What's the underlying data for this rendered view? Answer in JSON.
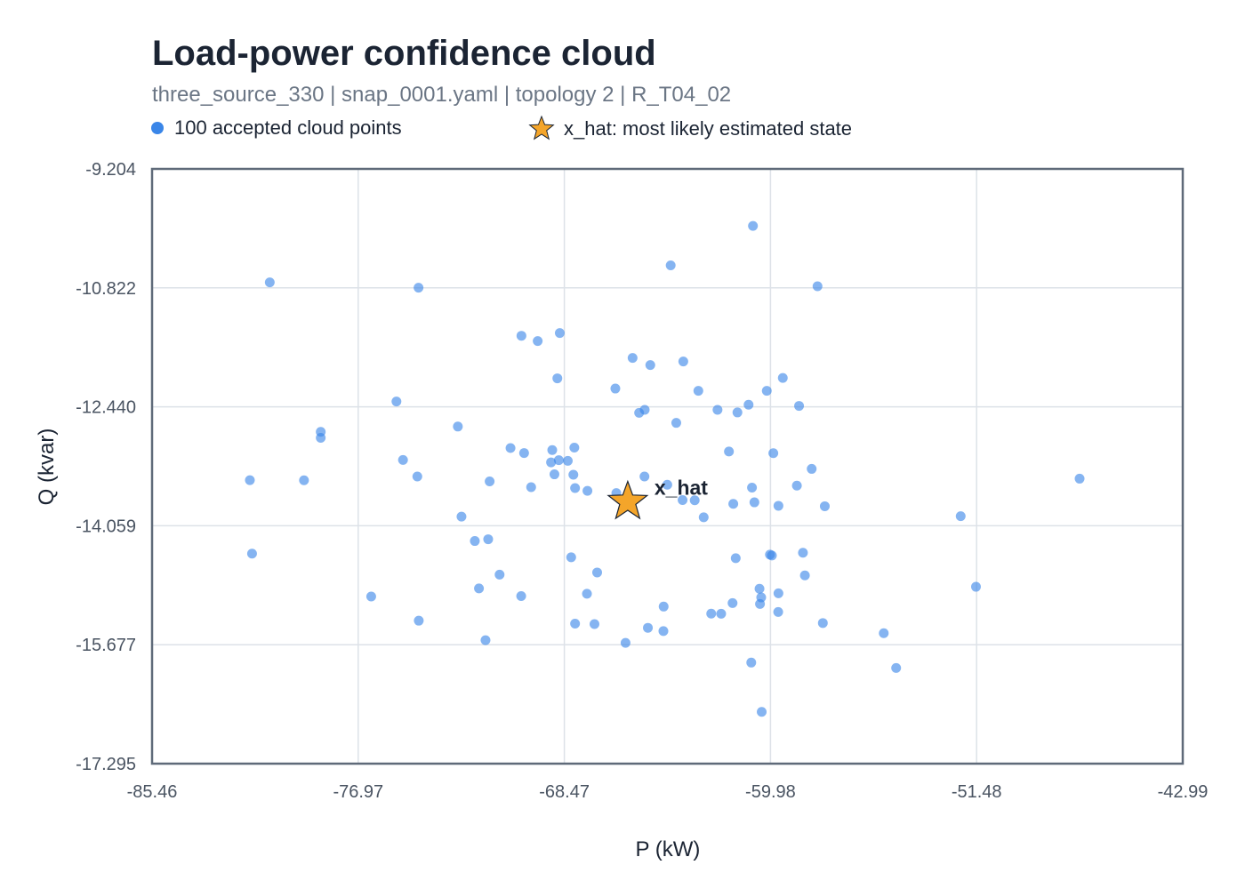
{
  "chart_data": {
    "type": "scatter",
    "title": "Load-power confidence cloud",
    "subtitle": "three_source_330 | snap_0001.yaml | topology 2 | R_T04_02",
    "xlabel": "P (kW)",
    "ylabel": "Q (kvar)",
    "xlim": [
      -85.46,
      -42.99
    ],
    "ylim": [
      -17.295,
      -9.204
    ],
    "xticks": [
      "-85.46",
      "-76.97",
      "-68.47",
      "-59.98",
      "-51.48",
      "-42.99"
    ],
    "yticks": [
      "-9.204",
      "-10.822",
      "-12.440",
      "-14.059",
      "-15.677",
      "-17.295"
    ],
    "grid": true,
    "legend_position": "top",
    "colors": {
      "cloud": "#3a86e8",
      "star": "#f4a52a",
      "star_outline": "#1b2433",
      "grid": "#dde2e8",
      "frame": "#5f6a79"
    },
    "series": [
      {
        "name": "100 accepted cloud points",
        "marker": "circle",
        "points": [
          [
            -60.7,
            -9.98
          ],
          [
            -64.09,
            -10.516
          ],
          [
            -80.61,
            -10.747
          ],
          [
            -74.48,
            -10.82
          ],
          [
            -58.04,
            -10.801
          ],
          [
            -70.24,
            -11.474
          ],
          [
            -69.57,
            -11.546
          ],
          [
            -68.66,
            -11.437
          ],
          [
            -65.66,
            -11.776
          ],
          [
            -64.93,
            -11.872
          ],
          [
            -63.57,
            -11.824
          ],
          [
            -68.76,
            -12.053
          ],
          [
            -66.37,
            -12.192
          ],
          [
            -62.95,
            -12.223
          ],
          [
            -60.88,
            -12.412
          ],
          [
            -60.13,
            -12.223
          ],
          [
            -59.47,
            -12.048
          ],
          [
            -58.8,
            -12.428
          ],
          [
            -75.39,
            -12.368
          ],
          [
            -65.39,
            -12.522
          ],
          [
            -65.16,
            -12.481
          ],
          [
            -63.86,
            -12.659
          ],
          [
            -62.16,
            -12.481
          ],
          [
            -61.34,
            -12.517
          ],
          [
            -72.86,
            -12.709
          ],
          [
            -78.51,
            -12.781
          ],
          [
            -78.51,
            -12.863
          ],
          [
            -75.12,
            -13.163
          ],
          [
            -74.53,
            -13.389
          ],
          [
            -70.69,
            -13.001
          ],
          [
            -70.13,
            -13.069
          ],
          [
            -68.97,
            -13.029
          ],
          [
            -68.06,
            -12.995
          ],
          [
            -68.33,
            -13.176
          ],
          [
            -68.7,
            -13.166
          ],
          [
            -69.02,
            -13.196
          ],
          [
            -68.1,
            -13.364
          ],
          [
            -68.88,
            -13.359
          ],
          [
            -68.03,
            -13.546
          ],
          [
            -67.52,
            -13.584
          ],
          [
            -65.17,
            -13.388
          ],
          [
            -61.69,
            -13.049
          ],
          [
            -59.86,
            -13.071
          ],
          [
            -58.28,
            -13.285
          ],
          [
            -58.89,
            -13.512
          ],
          [
            -60.74,
            -13.54
          ],
          [
            -61.51,
            -13.76
          ],
          [
            -60.64,
            -13.74
          ],
          [
            -59.65,
            -13.787
          ],
          [
            -57.74,
            -13.793
          ],
          [
            -71.55,
            -13.455
          ],
          [
            -69.84,
            -13.534
          ],
          [
            -64.23,
            -13.5
          ],
          [
            -63.6,
            -13.709
          ],
          [
            -66.33,
            -13.614
          ],
          [
            -65.73,
            -13.777
          ],
          [
            -81.43,
            -13.439
          ],
          [
            -79.2,
            -13.44
          ],
          [
            -47.24,
            -13.418
          ],
          [
            -52.14,
            -13.928
          ],
          [
            -72.71,
            -13.934
          ],
          [
            -63.1,
            -13.712
          ],
          [
            -62.73,
            -13.943
          ],
          [
            -81.34,
            -14.438
          ],
          [
            -72.16,
            -14.266
          ],
          [
            -71.61,
            -14.242
          ],
          [
            -71.14,
            -14.723
          ],
          [
            -68.19,
            -14.488
          ],
          [
            -67.12,
            -14.694
          ],
          [
            -61.41,
            -14.5
          ],
          [
            -71.99,
            -14.911
          ],
          [
            -60.0,
            -14.451
          ],
          [
            -59.92,
            -14.463
          ],
          [
            -58.56,
            -14.734
          ],
          [
            -58.64,
            -14.426
          ],
          [
            -59.65,
            -14.977
          ],
          [
            -60.43,
            -14.915
          ],
          [
            -60.36,
            -15.034
          ],
          [
            -60.41,
            -15.122
          ],
          [
            -61.54,
            -15.111
          ],
          [
            -59.66,
            -15.232
          ],
          [
            -51.51,
            -14.889
          ],
          [
            -76.43,
            -15.021
          ],
          [
            -70.25,
            -15.015
          ],
          [
            -67.54,
            -14.984
          ],
          [
            -64.38,
            -15.158
          ],
          [
            -62.42,
            -15.254
          ],
          [
            -62.01,
            -15.256
          ],
          [
            -74.47,
            -15.35
          ],
          [
            -68.03,
            -15.39
          ],
          [
            -67.23,
            -15.396
          ],
          [
            -65.03,
            -15.447
          ],
          [
            -64.39,
            -15.491
          ],
          [
            -57.82,
            -15.382
          ],
          [
            -55.31,
            -15.52
          ],
          [
            -71.72,
            -15.616
          ],
          [
            -65.95,
            -15.652
          ],
          [
            -60.77,
            -15.92
          ],
          [
            -54.8,
            -15.993
          ],
          [
            -60.34,
            -16.59
          ]
        ]
      },
      {
        "name": "x_hat: most likely estimated state",
        "marker": "star",
        "label": "x_hat",
        "points": [
          [
            -65.86,
            -13.733
          ]
        ]
      }
    ]
  }
}
